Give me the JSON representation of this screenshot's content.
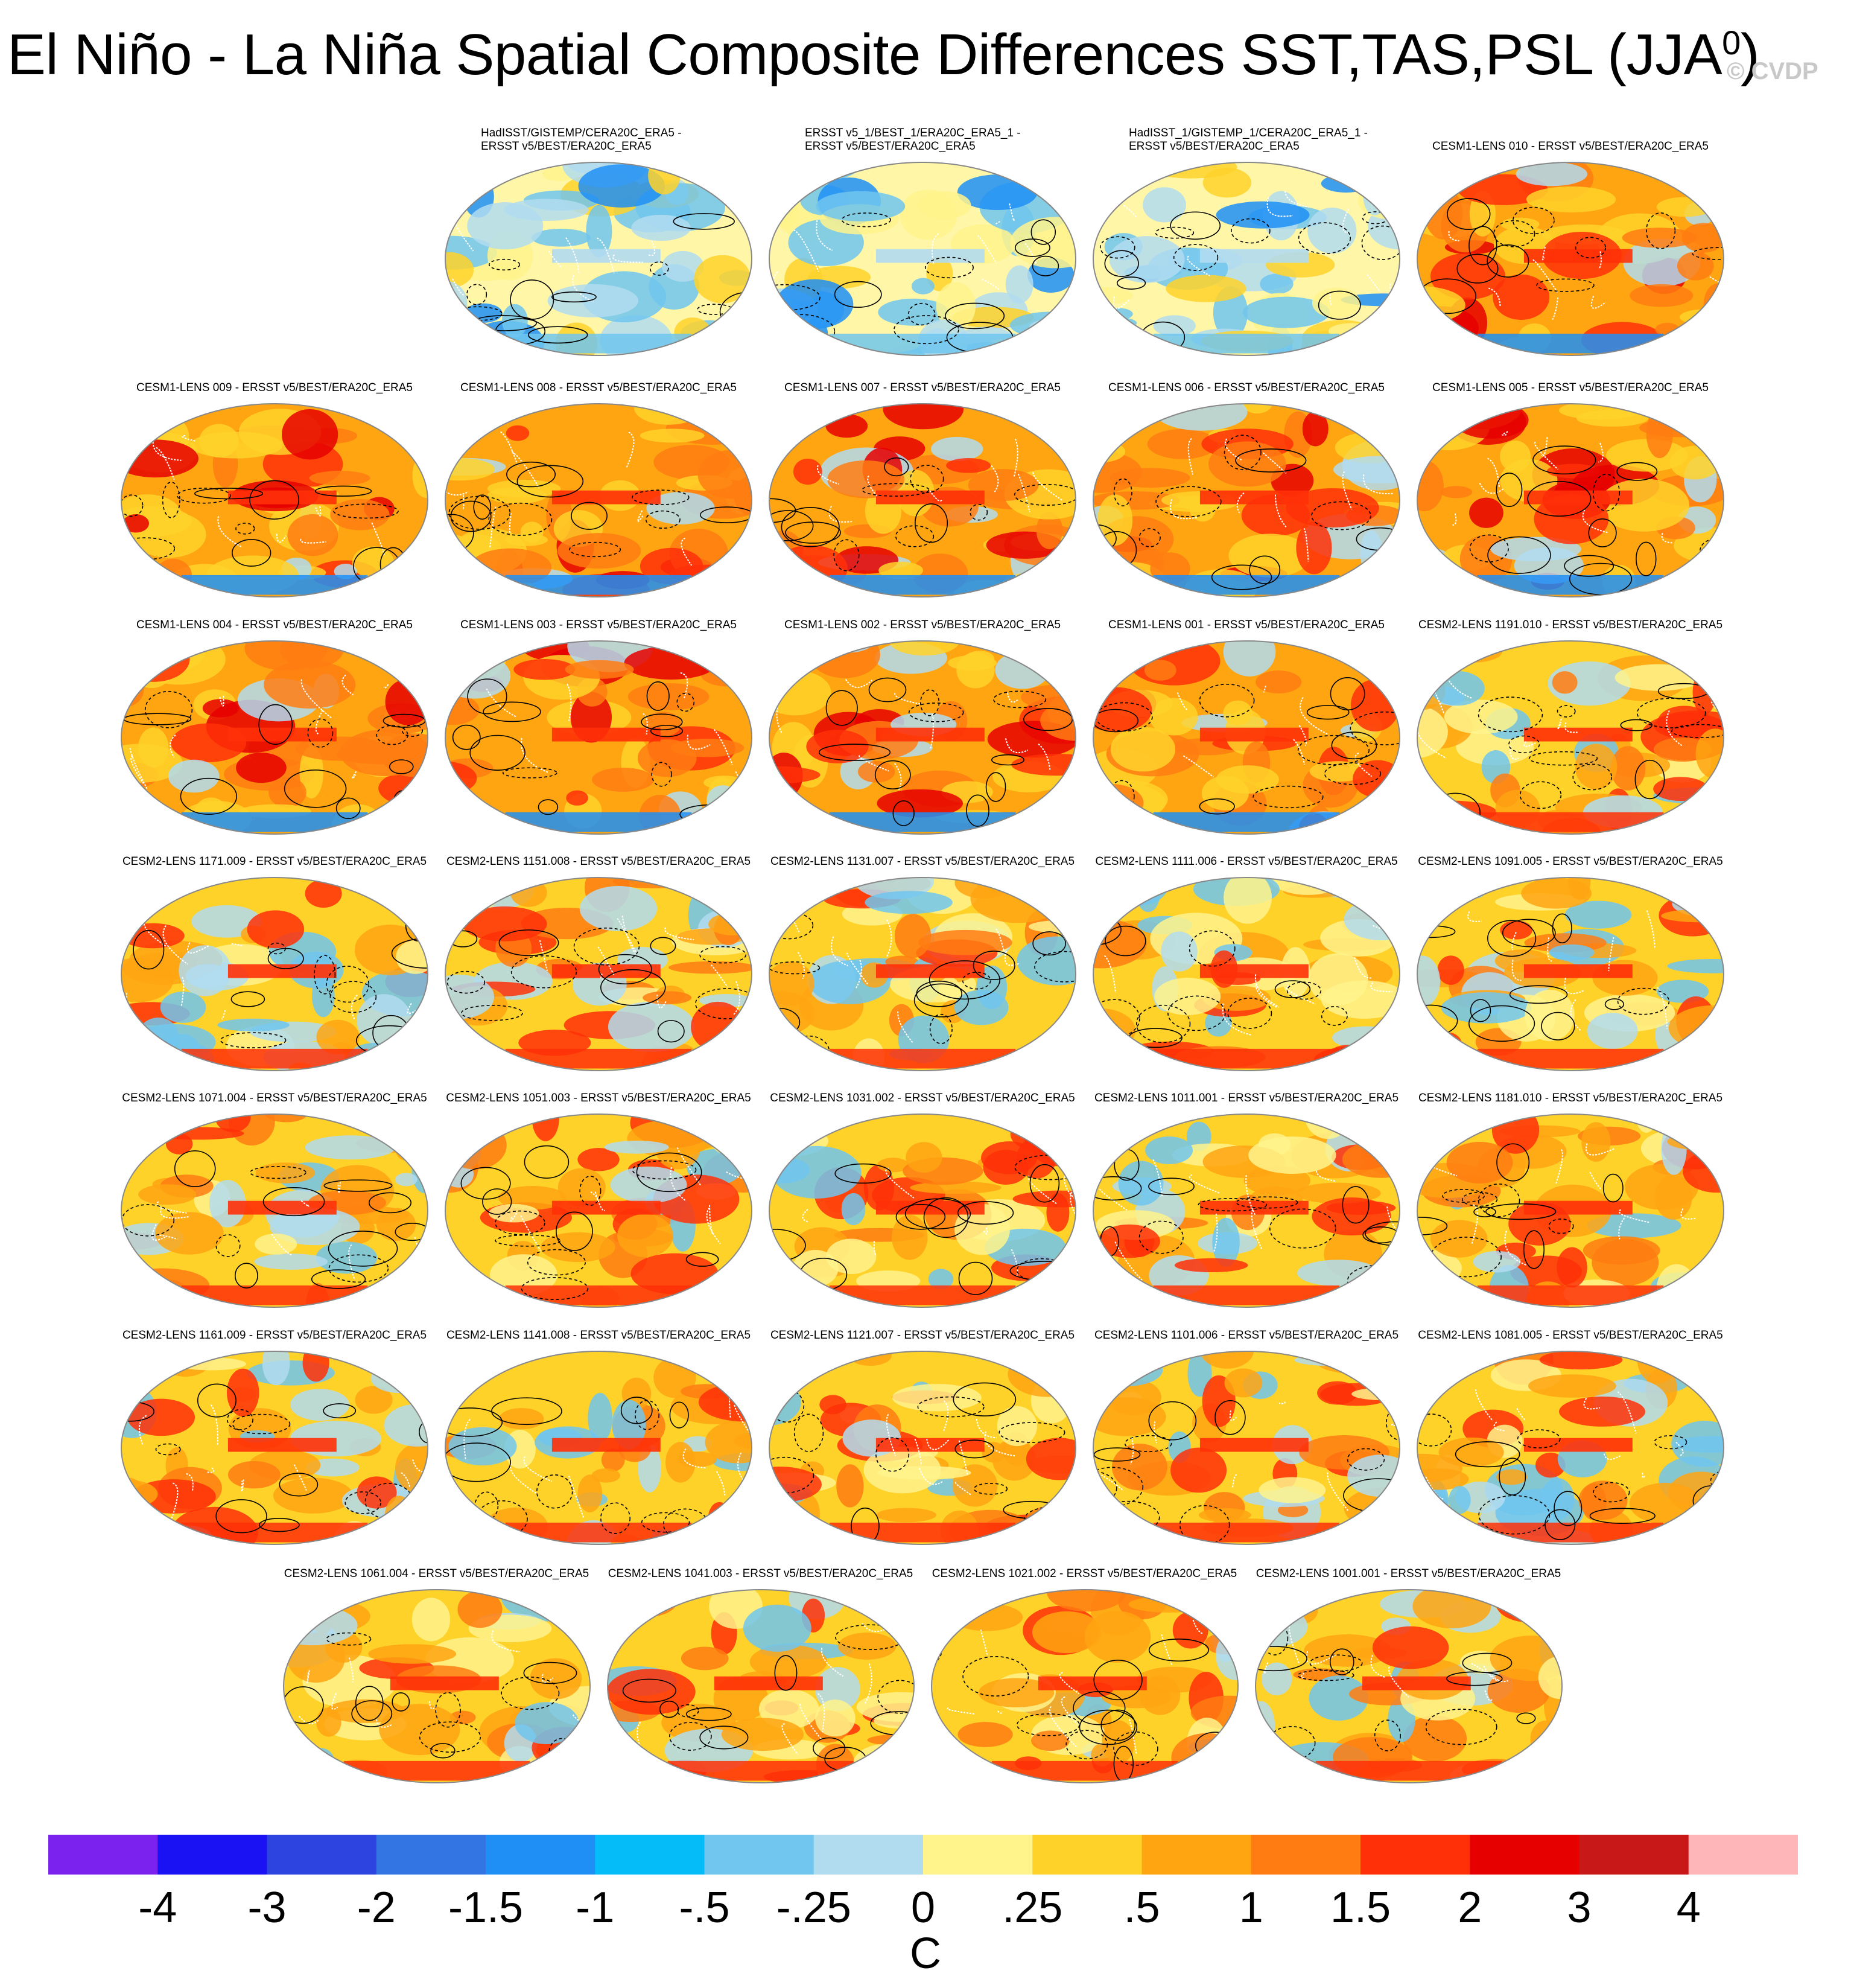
{
  "title": {
    "main": "El Niño - La Niña Spatial Composite Differences SST,TAS,PSL (JJA",
    "sup": "0",
    "close": ")"
  },
  "watermark": "© CVDP",
  "panels": [
    {
      "lines": [
        "HadISST/GISTEMP/CERA20C_ERA5 -",
        "ERSST v5/BEST/ERA20C_ERA5"
      ],
      "tone": "cool"
    },
    {
      "lines": [
        "ERSST v5_1/BEST_1/ERA20C_ERA5_1 -",
        "ERSST v5/BEST/ERA20C_ERA5"
      ],
      "tone": "cool"
    },
    {
      "lines": [
        "HadISST_1/GISTEMP_1/CERA20C_ERA5_1 -",
        "ERSST v5/BEST/ERA20C_ERA5"
      ],
      "tone": "cool"
    },
    {
      "lines": [
        "CESM1-LENS 010 - ERSST v5/BEST/ERA20C_ERA5"
      ],
      "tone": "hot"
    },
    {
      "lines": [
        "CESM1-LENS 009 - ERSST v5/BEST/ERA20C_ERA5"
      ],
      "tone": "hot"
    },
    {
      "lines": [
        "CESM1-LENS 008 - ERSST v5/BEST/ERA20C_ERA5"
      ],
      "tone": "hot"
    },
    {
      "lines": [
        "CESM1-LENS 007 - ERSST v5/BEST/ERA20C_ERA5"
      ],
      "tone": "hot"
    },
    {
      "lines": [
        "CESM1-LENS 006 - ERSST v5/BEST/ERA20C_ERA5"
      ],
      "tone": "hot"
    },
    {
      "lines": [
        "CESM1-LENS 005 - ERSST v5/BEST/ERA20C_ERA5"
      ],
      "tone": "hot"
    },
    {
      "lines": [
        "CESM1-LENS 004 - ERSST v5/BEST/ERA20C_ERA5"
      ],
      "tone": "hot"
    },
    {
      "lines": [
        "CESM1-LENS 003 - ERSST v5/BEST/ERA20C_ERA5"
      ],
      "tone": "hot"
    },
    {
      "lines": [
        "CESM1-LENS 002 - ERSST v5/BEST/ERA20C_ERA5"
      ],
      "tone": "hot"
    },
    {
      "lines": [
        "CESM1-LENS 001 - ERSST v5/BEST/ERA20C_ERA5"
      ],
      "tone": "hot"
    },
    {
      "lines": [
        "CESM2-LENS 1191.010 - ERSST v5/BEST/ERA20C_ERA5"
      ],
      "tone": "warm"
    },
    {
      "lines": [
        "CESM2-LENS 1171.009 - ERSST v5/BEST/ERA20C_ERA5"
      ],
      "tone": "warm"
    },
    {
      "lines": [
        "CESM2-LENS 1151.008 - ERSST v5/BEST/ERA20C_ERA5"
      ],
      "tone": "warm"
    },
    {
      "lines": [
        "CESM2-LENS 1131.007 - ERSST v5/BEST/ERA20C_ERA5"
      ],
      "tone": "warm"
    },
    {
      "lines": [
        "CESM2-LENS 1111.006 - ERSST v5/BEST/ERA20C_ERA5"
      ],
      "tone": "warm"
    },
    {
      "lines": [
        "CESM2-LENS 1091.005 - ERSST v5/BEST/ERA20C_ERA5"
      ],
      "tone": "warm"
    },
    {
      "lines": [
        "CESM2-LENS 1071.004 - ERSST v5/BEST/ERA20C_ERA5"
      ],
      "tone": "warm"
    },
    {
      "lines": [
        "CESM2-LENS 1051.003 - ERSST v5/BEST/ERA20C_ERA5"
      ],
      "tone": "warm"
    },
    {
      "lines": [
        "CESM2-LENS 1031.002 - ERSST v5/BEST/ERA20C_ERA5"
      ],
      "tone": "warm"
    },
    {
      "lines": [
        "CESM2-LENS 1011.001 - ERSST v5/BEST/ERA20C_ERA5"
      ],
      "tone": "warm"
    },
    {
      "lines": [
        "CESM2-LENS 1181.010 - ERSST v5/BEST/ERA20C_ERA5"
      ],
      "tone": "warm"
    },
    {
      "lines": [
        "CESM2-LENS 1161.009 - ERSST v5/BEST/ERA20C_ERA5"
      ],
      "tone": "warm"
    },
    {
      "lines": [
        "CESM2-LENS 1141.008 - ERSST v5/BEST/ERA20C_ERA5"
      ],
      "tone": "warm"
    },
    {
      "lines": [
        "CESM2-LENS 1121.007 - ERSST v5/BEST/ERA20C_ERA5"
      ],
      "tone": "warm"
    },
    {
      "lines": [
        "CESM2-LENS 1101.006 - ERSST v5/BEST/ERA20C_ERA5"
      ],
      "tone": "warm"
    },
    {
      "lines": [
        "CESM2-LENS 1081.005 - ERSST v5/BEST/ERA20C_ERA5"
      ],
      "tone": "warm"
    },
    {
      "lines": [
        "CESM2-LENS 1061.004 - ERSST v5/BEST/ERA20C_ERA5"
      ],
      "tone": "warm"
    },
    {
      "lines": [
        "CESM2-LENS 1041.003 - ERSST v5/BEST/ERA20C_ERA5"
      ],
      "tone": "warm"
    },
    {
      "lines": [
        "CESM2-LENS 1021.002 - ERSST v5/BEST/ERA20C_ERA5"
      ],
      "tone": "warm"
    },
    {
      "lines": [
        "CESM2-LENS 1001.001 - ERSST v5/BEST/ERA20C_ERA5"
      ],
      "tone": "warm"
    }
  ],
  "colorbar": {
    "unit": "C",
    "labels": [
      "-4",
      "-3",
      "-2",
      "-1.5",
      "-1",
      "-.5",
      "-.25",
      "0",
      ".25",
      ".5",
      "1",
      "1.5",
      "2",
      "3",
      "4"
    ],
    "colors": [
      "#7b22ee",
      "#1a12f2",
      "#2d44e0",
      "#3475e4",
      "#1f8ff6",
      "#06bcf8",
      "#70c6ef",
      "#b1dcf0",
      "#fff38c",
      "#ffd22a",
      "#ffa512",
      "#ff7c12",
      "#ff3008",
      "#e60000",
      "#c81818",
      "#ffb6b8"
    ]
  },
  "chart_data": {
    "type": "heatmap",
    "title": "El Niño - La Niña Spatial Composite Differences SST,TAS,PSL (JJA0)",
    "panel_count": 33,
    "colorbar_unit": "C",
    "colorbar_levels": [
      -4,
      -3,
      -2,
      -1.5,
      -1,
      -0.5,
      -0.25,
      0,
      0.25,
      0.5,
      1,
      1.5,
      2,
      3,
      4
    ],
    "projection": "robinson",
    "contours": "PSL (solid positive, dashed negative)"
  }
}
